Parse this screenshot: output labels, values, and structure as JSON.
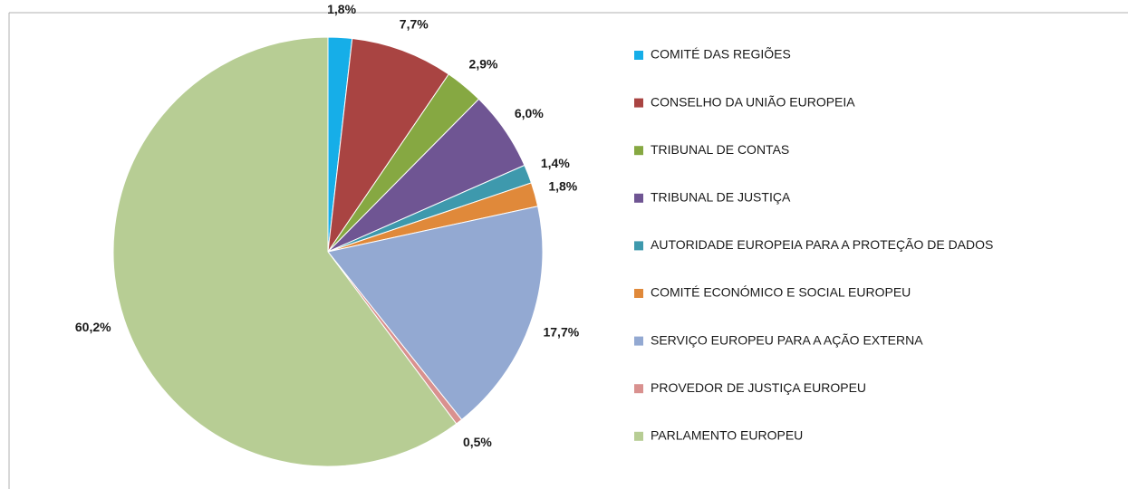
{
  "chart_data": {
    "type": "pie",
    "categories": [
      "COMITÉ DAS REGIÕES",
      "CONSELHO DA UNIÃO EUROPEIA",
      "TRIBUNAL DE CONTAS",
      "TRIBUNAL DE JUSTIÇA",
      "AUTORIDADE EUROPEIA PARA A PROTEÇÃO DE DADOS",
      "COMITÉ ECONÓMICO E SOCIAL EUROPEU",
      "SERVIÇO EUROPEU PARA A AÇÃO EXTERNA",
      "PROVEDOR DE JUSTIÇA EUROPEU",
      "PARLAMENTO EUROPEU"
    ],
    "values": [
      1.8,
      7.7,
      2.9,
      6.0,
      1.4,
      1.8,
      17.7,
      0.5,
      60.2
    ],
    "value_labels": [
      "1,8%",
      "7,7%",
      "2,9%",
      "6,0%",
      "1,4%",
      "1,8%",
      "17,7%",
      "0,5%",
      "60,2%"
    ],
    "colors": [
      "#16aee8",
      "#a94442",
      "#86a842",
      "#6f5593",
      "#3e99ad",
      "#e0893a",
      "#93a9d2",
      "#d9918f",
      "#b7cd94"
    ],
    "legend": "right"
  }
}
